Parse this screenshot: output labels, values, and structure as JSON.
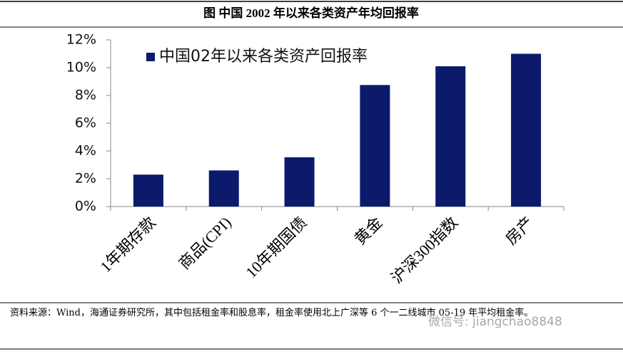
{
  "chart_data": {
    "type": "bar",
    "title": "图  中国 2002 年以来各类资产年均回报率",
    "categories": [
      "1年期存款",
      "商品(CPI)",
      "10年期国债",
      "黄金",
      "沪深300指数",
      "房产"
    ],
    "series": [
      {
        "name": "中国02年以来各类资产回报率",
        "color": "#0c1a6b",
        "values": [
          2.3,
          2.6,
          3.55,
          8.75,
          10.1,
          11.0
        ]
      }
    ],
    "ylim": [
      0,
      12
    ],
    "yticks": [
      {
        "value": 0,
        "label": "0%"
      },
      {
        "value": 2,
        "label": "2%"
      },
      {
        "value": 4,
        "label": "4%"
      },
      {
        "value": 6,
        "label": "6%"
      },
      {
        "value": 8,
        "label": "8%"
      },
      {
        "value": 10,
        "label": "10%"
      },
      {
        "value": 12,
        "label": "12%"
      }
    ],
    "grid": false,
    "legend": "top-left",
    "source": "资料来源：Wind，海通证券研究所，其中包括租金率和股息率，租金率使用北上广深等 6 个一二线城市 05-19 年平均租金率。",
    "watermark": "微信号: jiangchao8848"
  }
}
